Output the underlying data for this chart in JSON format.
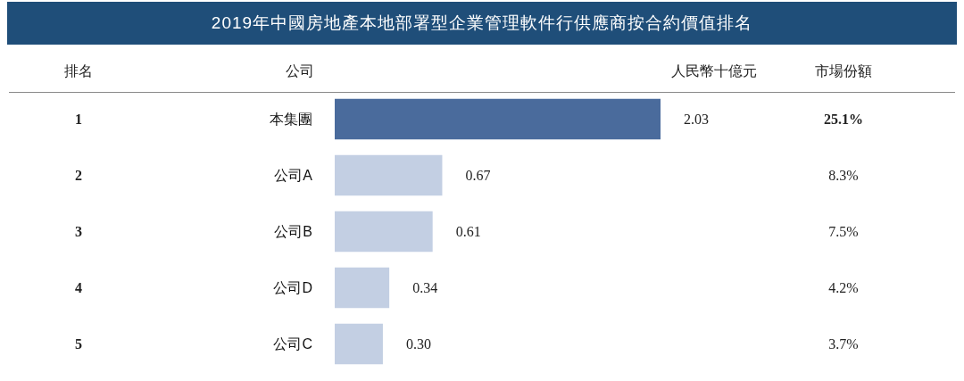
{
  "chart_data": {
    "type": "bar",
    "orientation": "horizontal",
    "title": "2019年中國房地產本地部署型企業管理軟件行供應商按合約價值排名",
    "ylabel": "公司",
    "xlabel": "人民幣十億元",
    "categories": [
      "本集團",
      "公司A",
      "公司B",
      "公司D",
      "公司C"
    ],
    "values": [
      2.03,
      0.67,
      0.61,
      0.34,
      0.3
    ],
    "colors": [
      "#4a6b9c",
      "#c3cfe3",
      "#c3cfe3",
      "#c3cfe3",
      "#c3cfe3"
    ],
    "value_labels": [
      "2.03",
      "0.67",
      "0.61",
      "0.34",
      "0.30"
    ],
    "annotations": [
      "排名",
      "市場份額",
      "1",
      "25.1%",
      "2",
      "8.3%",
      "3",
      "7.5%",
      "4",
      "4.2%",
      "5",
      "3.7%"
    ]
  }
}
